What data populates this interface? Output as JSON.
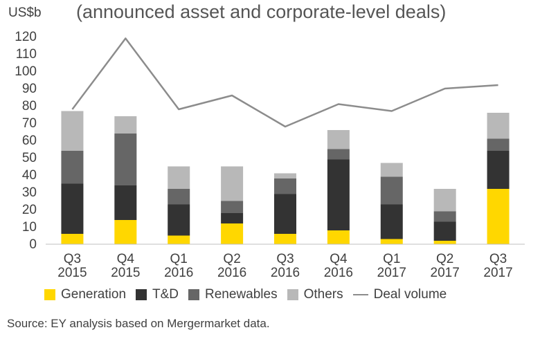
{
  "chart_data": {
    "type": "bar",
    "title": "(announced asset and corporate-level deals)",
    "ylabel": "US$b",
    "ylim": [
      0,
      120
    ],
    "yticks": [
      0,
      10,
      20,
      30,
      40,
      50,
      60,
      70,
      80,
      90,
      100,
      110,
      120
    ],
    "categories": [
      [
        "Q3",
        "2015"
      ],
      [
        "Q4",
        "2015"
      ],
      [
        "Q1",
        "2016"
      ],
      [
        "Q2",
        "2016"
      ],
      [
        "Q3",
        "2016"
      ],
      [
        "Q4",
        "2016"
      ],
      [
        "Q1",
        "2017"
      ],
      [
        "Q2",
        "2017"
      ],
      [
        "Q3",
        "2017"
      ]
    ],
    "stacked": true,
    "grid": false,
    "legend_position": "bottom",
    "series": [
      {
        "name": "Generation",
        "type": "bar",
        "color": "#ffd700",
        "values": [
          6,
          14,
          5,
          12,
          6,
          8,
          3,
          2,
          32
        ]
      },
      {
        "name": "T&D",
        "type": "bar",
        "color": "#333333",
        "values": [
          29,
          20,
          18,
          6,
          23,
          41,
          20,
          11,
          22
        ]
      },
      {
        "name": "Renewables",
        "type": "bar",
        "color": "#666666",
        "values": [
          19,
          30,
          9,
          7,
          9,
          6,
          16,
          6,
          7
        ]
      },
      {
        "name": "Others",
        "type": "bar",
        "color": "#b8b8b8",
        "values": [
          23,
          10,
          13,
          20,
          3,
          11,
          8,
          13,
          15
        ]
      },
      {
        "name": "Deal volume",
        "type": "line",
        "color": "#8c8c8c",
        "values": [
          78,
          119,
          78,
          86,
          68,
          81,
          77,
          90,
          92
        ]
      }
    ]
  },
  "source_note": "Source: EY analysis based on Mergermarket data."
}
